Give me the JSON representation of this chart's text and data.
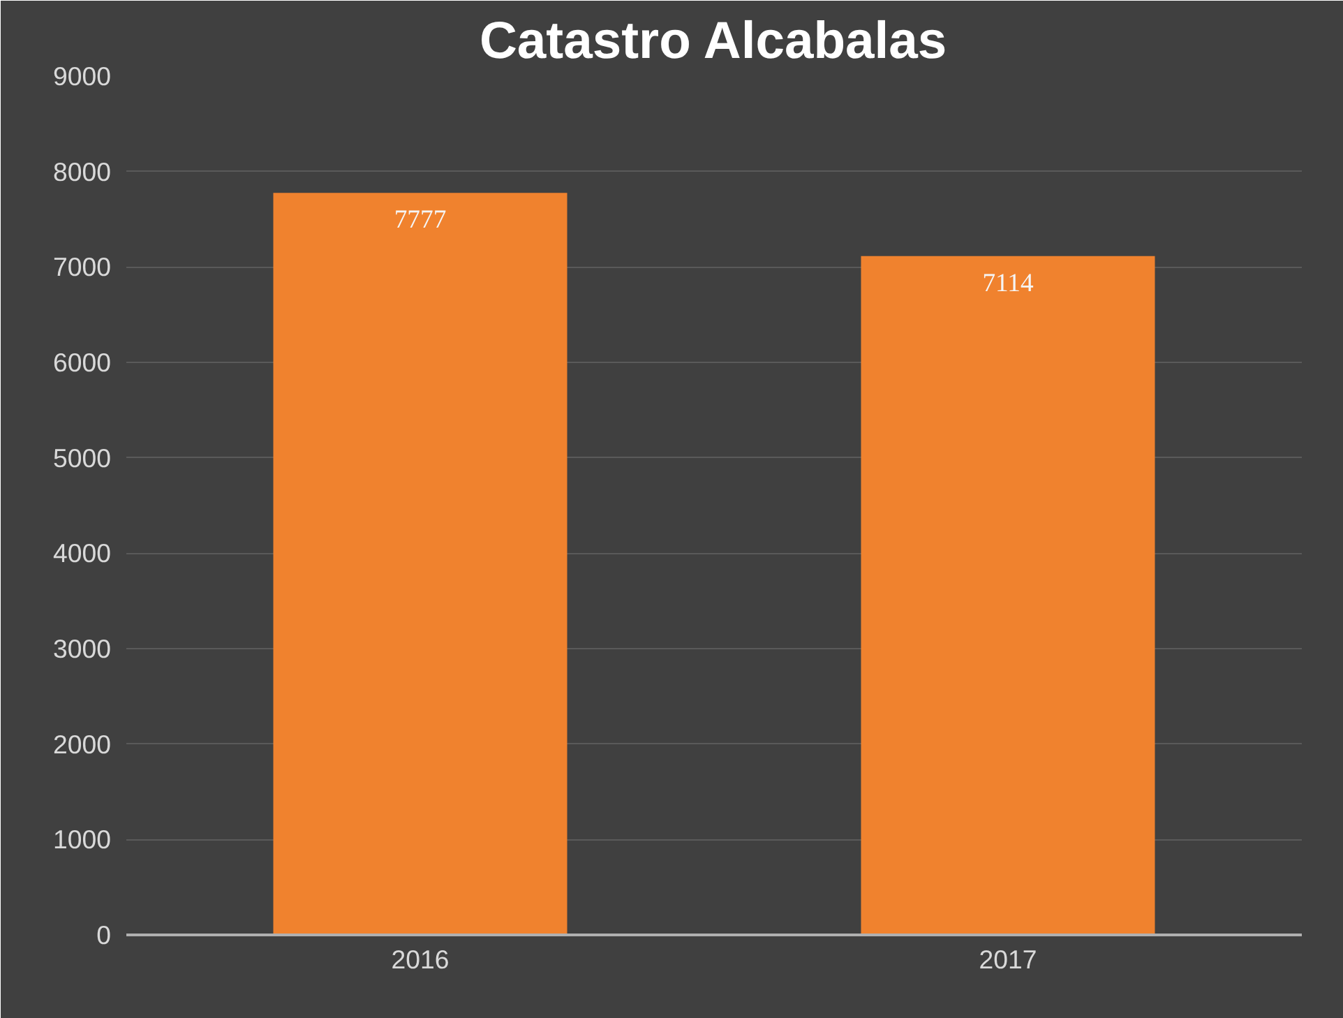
{
  "chart_data": {
    "type": "bar",
    "title": "Catastro Alcabalas",
    "categories": [
      "2016",
      "2017"
    ],
    "values": [
      7777,
      7114
    ],
    "color": "#f0822e",
    "ylim": [
      0,
      9000
    ],
    "yticks": [
      0,
      1000,
      2000,
      3000,
      4000,
      5000,
      6000,
      7000,
      8000,
      9000
    ],
    "grid": "y",
    "data_labels": true
  }
}
